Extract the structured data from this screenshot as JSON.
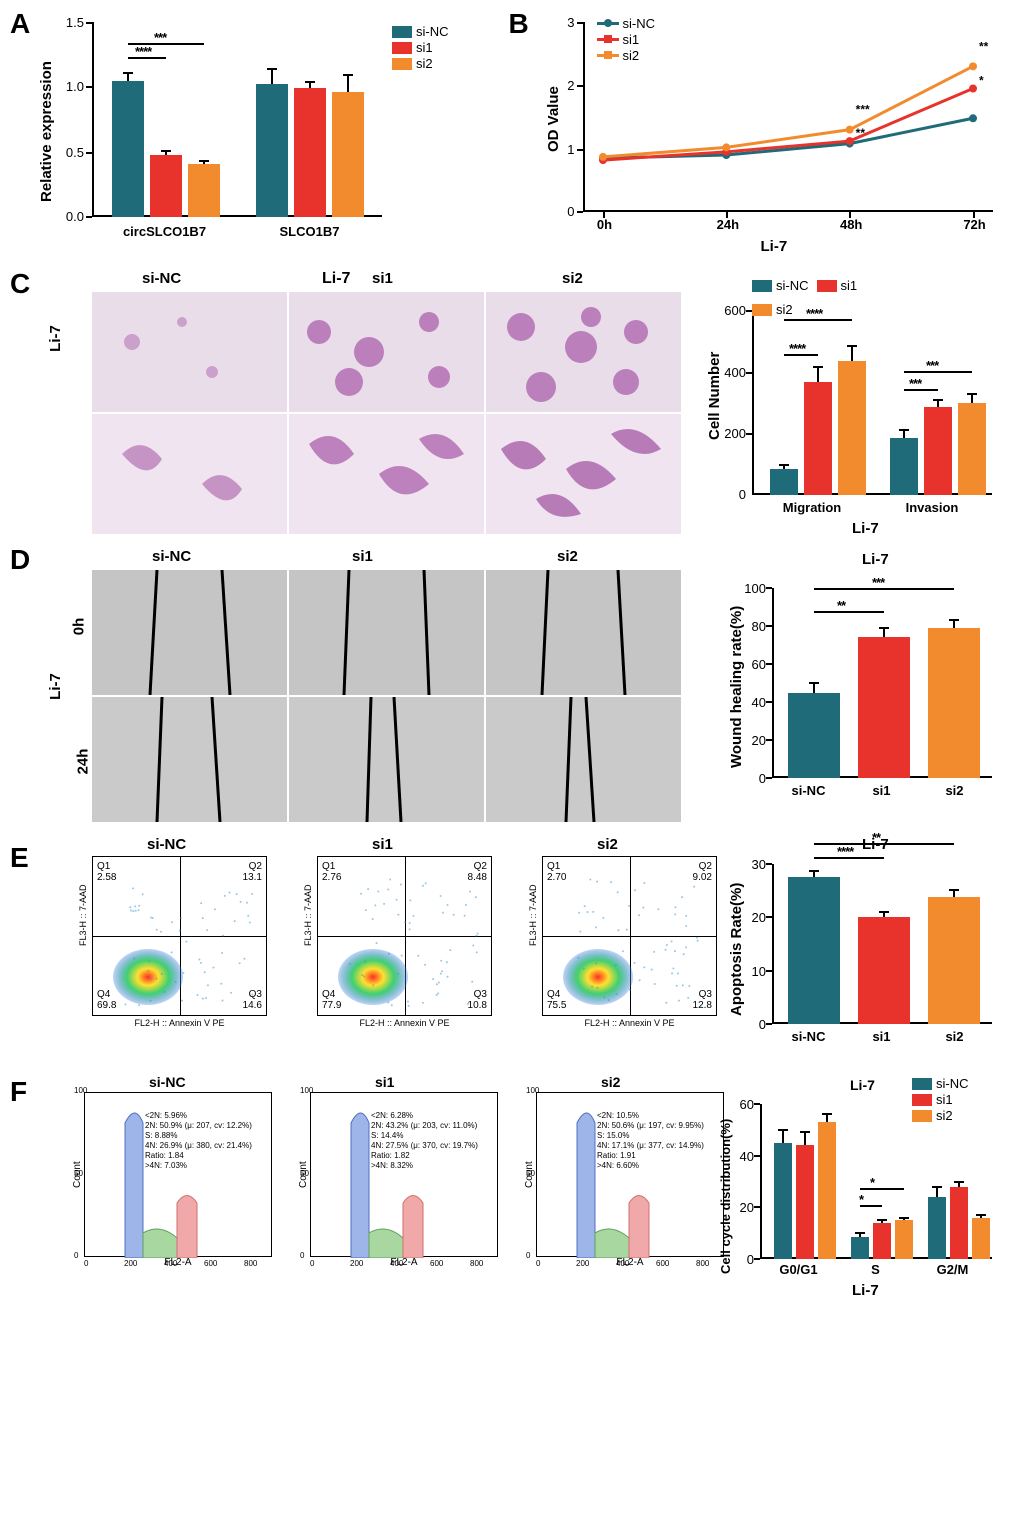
{
  "colors": {
    "siNC": "#1f6b7a",
    "si1": "#e8332c",
    "si2": "#f28b2e",
    "microscopy_bg": "#e8d4e0",
    "gray_bg": "#bdbdbd",
    "text": "#000000",
    "histo_blue": "#9db5e8",
    "histo_green": "#a8d8a0",
    "histo_red": "#f0a8a8"
  },
  "groups": {
    "nc": "si-NC",
    "s1": "si1",
    "s2": "si2"
  },
  "panelA": {
    "label": "A",
    "ylabel": "Relative expression",
    "ylim": [
      0,
      1.5
    ],
    "ystep": 0.5,
    "cats": [
      "circSLCO1B7",
      "SLCO1B7"
    ],
    "data": {
      "circSLCO1B7": {
        "siNC": 1.05,
        "si1": 0.48,
        "si2": 0.41
      },
      "SLCO1B7": {
        "siNC": 1.02,
        "si1": 0.99,
        "si2": 0.96
      }
    },
    "err": {
      "circSLCO1B7": {
        "siNC": 0.06,
        "si1": 0.03,
        "si2": 0.02
      },
      "SLCO1B7": {
        "siNC": 0.12,
        "si1": 0.05,
        "si2": 0.13
      }
    },
    "sig": [
      {
        "from": "siNC",
        "to": "si1",
        "text": "****"
      },
      {
        "from": "siNC",
        "to": "si2",
        "text": "***"
      }
    ]
  },
  "panelB": {
    "label": "B",
    "ylabel": "OD Value",
    "xlabel": "Li-7",
    "ylim": [
      0,
      3
    ],
    "ystep": 1,
    "xcats": [
      "0h",
      "24h",
      "48h",
      "72h"
    ],
    "series": {
      "siNC": [
        0.85,
        0.9,
        1.08,
        1.48
      ],
      "si1": [
        0.82,
        0.95,
        1.12,
        1.95
      ],
      "si2": [
        0.87,
        1.02,
        1.3,
        2.3
      ]
    },
    "sig48": {
      "si1": "**",
      "si2": "***"
    },
    "sig72": {
      "si1": "*",
      "si2": "**"
    }
  },
  "panelC": {
    "label": "C",
    "title": "Li-7",
    "rows": [
      "Migration",
      "Invasion"
    ],
    "cols": [
      "si-NC",
      "si1",
      "si2"
    ],
    "cell_line": "Li-7",
    "chart": {
      "ylabel": "Cell Number",
      "ylim": [
        0,
        600
      ],
      "ystep": 200,
      "cats": [
        "Migration",
        "Invasion"
      ],
      "title": "Li-7",
      "data": {
        "Migration": {
          "siNC": 85,
          "si1": 365,
          "si2": 435
        },
        "Invasion": {
          "siNC": 185,
          "si1": 285,
          "si2": 300
        }
      },
      "err": {
        "Migration": {
          "siNC": 12,
          "si1": 50,
          "si2": 48
        },
        "Invasion": {
          "siNC": 25,
          "si1": 22,
          "si2": 28
        }
      },
      "sig": {
        "Migration": [
          {
            "text": "****"
          },
          {
            "text": "****"
          }
        ],
        "Invasion": [
          {
            "text": "***"
          },
          {
            "text": "***"
          }
        ]
      }
    }
  },
  "panelD": {
    "label": "D",
    "rows": [
      "0h",
      "24h"
    ],
    "cols": [
      "si-NC",
      "si1",
      "si2"
    ],
    "cell_line": "Li-7",
    "chart": {
      "ylabel": "Wound healing rate(%)",
      "ylim": [
        0,
        100
      ],
      "ystep": 20,
      "title": "Li-7",
      "data": {
        "siNC": 45,
        "si1": 74,
        "si2": 79
      },
      "err": {
        "siNC": 5,
        "si1": 5,
        "si2": 4
      },
      "sig": [
        {
          "text": "**"
        },
        {
          "text": "***"
        }
      ]
    }
  },
  "panelE": {
    "label": "E",
    "cols": [
      "si-NC",
      "si1",
      "si2"
    ],
    "xaxis": "FL2-H :: Annexin V PE",
    "yaxis": "FL3-H :: 7-AAD",
    "quads": {
      "si-NC": {
        "Q1": "2.58",
        "Q2": "13.1",
        "Q3": "14.6",
        "Q4": "69.8"
      },
      "si1": {
        "Q1": "2.76",
        "Q2": "8.48",
        "Q3": "10.8",
        "Q4": "77.9"
      },
      "si2": {
        "Q1": "2.70",
        "Q2": "9.02",
        "Q3": "12.8",
        "Q4": "75.5"
      }
    },
    "chart": {
      "ylabel": "Apoptosis Rate(%)",
      "ylim": [
        0,
        30
      ],
      "ystep": 10,
      "title": "Li-7",
      "data": {
        "siNC": 27.5,
        "si1": 20,
        "si2": 23.8
      },
      "err": {
        "siNC": 1.2,
        "si1": 1,
        "si2": 1.3
      },
      "sig": [
        {
          "text": "****"
        },
        {
          "text": "**"
        }
      ]
    }
  },
  "panelF": {
    "label": "F",
    "cols": [
      "si-NC",
      "si1",
      "si2"
    ],
    "xaxis": "FL2-A",
    "yaxis": "Count",
    "stats": {
      "si-NC": [
        "<2N: 5.96%",
        "2N: 50.9%  (μ: 207, cv: 12.2%)",
        "S: 8.88%",
        "4N: 26.9%  (μ: 380, cv: 21.4%)",
        "Ratio: 1.84",
        ">4N: 7.03%"
      ],
      "si1": [
        "<2N: 6.28%",
        "2N: 43.2%  (μ: 203, cv: 11.0%)",
        "S: 14.4%",
        "4N: 27.5%  (μ: 370, cv: 19.7%)",
        "Ratio: 1.82",
        ">4N: 8.32%"
      ],
      "si2": [
        "<2N: 10.5%",
        "2N: 50.6%  (μ: 197, cv: 9.95%)",
        "S: 15.0%",
        "4N: 17.1%  (μ: 377, cv: 14.9%)",
        "Ratio: 1.91",
        ">4N: 6.60%"
      ]
    },
    "chart": {
      "ylabel": "Cell cycle distribution(%)",
      "ylim": [
        0,
        60
      ],
      "ystep": 20,
      "cats": [
        "G0/G1",
        "S",
        "G2/M"
      ],
      "title": "Li-7",
      "bottom_title": "Li-7",
      "data": {
        "G0/G1": {
          "siNC": 45,
          "si1": 44,
          "si2": 53
        },
        "S": {
          "siNC": 8.5,
          "si1": 14,
          "si2": 15
        },
        "G2/M": {
          "siNC": 24,
          "si1": 28,
          "si2": 16
        }
      },
      "err": {
        "G0/G1": {
          "siNC": 5,
          "si1": 5,
          "si2": 3
        },
        "S": {
          "siNC": 1.5,
          "si1": 1,
          "si2": 1
        },
        "G2/M": {
          "siNC": 4,
          "si1": 2,
          "si2": 1
        }
      },
      "sig": {
        "S": [
          {
            "text": "*"
          },
          {
            "text": "*"
          }
        ]
      }
    }
  }
}
